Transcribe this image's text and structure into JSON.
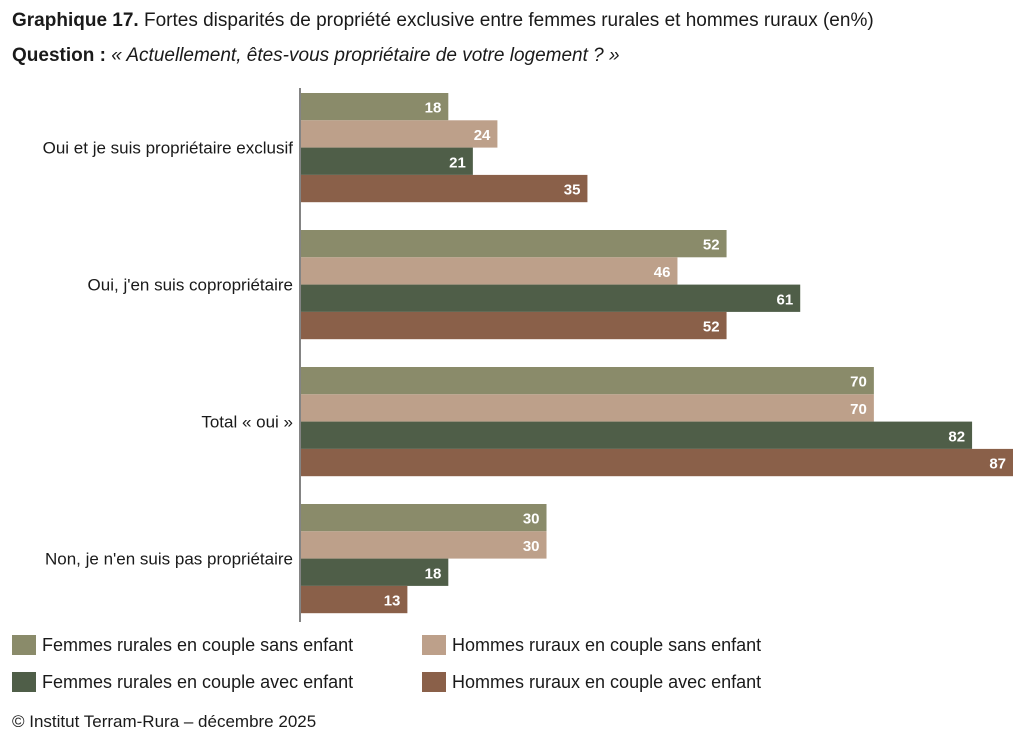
{
  "header": {
    "title_bold": "Graphique 17.",
    "title_rest": " Fortes disparités de propriété exclusive entre femmes rurales et hommes ruraux (en%)",
    "question_bold": "Question :",
    "question_text": " « Actuellement, êtes-vous propriétaire de votre logement ? »"
  },
  "chart_data": {
    "type": "bar",
    "orientation": "horizontal",
    "title": "Fortes disparités de propriété exclusive entre femmes rurales et hommes ruraux (en%)",
    "categories": [
      "Oui et je suis propriétaire exclusif",
      "Oui, j'en suis copropriétaire",
      "Total « oui »",
      "Non, je n'en suis pas propriétaire"
    ],
    "series": [
      {
        "name": "Femmes rurales en couple sans enfant",
        "color": "#8a8b6a",
        "values": [
          18,
          52,
          70,
          30
        ]
      },
      {
        "name": "Hommes ruraux en couple sans enfant",
        "color": "#bda08a",
        "values": [
          24,
          46,
          70,
          30
        ]
      },
      {
        "name": "Femmes rurales en couple avec enfant",
        "color": "#4f5e48",
        "values": [
          21,
          61,
          82,
          18
        ]
      },
      {
        "name": "Hommes ruraux en couple avec enfant",
        "color": "#8a6049",
        "values": [
          35,
          52,
          87,
          13
        ]
      }
    ],
    "xlim": [
      0,
      87
    ],
    "xlabel": "",
    "ylabel": "",
    "legend_position": "bottom",
    "grid": false
  },
  "source": "© Institut Terram-Rura – décembre 2025"
}
